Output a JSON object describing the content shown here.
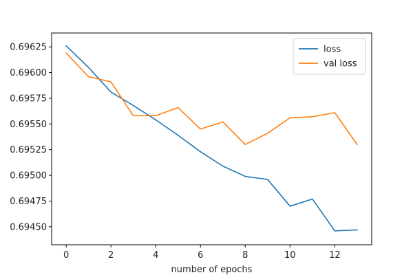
{
  "chart_data": {
    "type": "line",
    "title": "",
    "xlabel": "number of epochs",
    "ylabel": "",
    "x": [
      0,
      1,
      2,
      3,
      4,
      5,
      6,
      7,
      8,
      9,
      10,
      11,
      12,
      13
    ],
    "series": [
      {
        "name": "loss",
        "color": "#1f77b4",
        "values": [
          0.69626,
          0.69605,
          0.69581,
          0.69568,
          0.69554,
          0.69539,
          0.69523,
          0.69509,
          0.69499,
          0.69496,
          0.6947,
          0.69477,
          0.69446,
          0.69447
        ]
      },
      {
        "name": "val loss",
        "color": "#ff7f0e",
        "values": [
          0.69619,
          0.69596,
          0.69591,
          0.69558,
          0.69558,
          0.69566,
          0.69545,
          0.69552,
          0.6953,
          0.69541,
          0.69556,
          0.69557,
          0.69561,
          0.6953
        ]
      }
    ],
    "xticks": [
      "0",
      "2",
      "4",
      "6",
      "8",
      "10",
      "12"
    ],
    "yticks": [
      "0.69450",
      "0.69475",
      "0.69500",
      "0.69525",
      "0.69550",
      "0.69575",
      "0.69600",
      "0.69625"
    ],
    "xlim": [
      -0.65,
      13.65
    ],
    "ylim": [
      0.694325,
      0.696385
    ],
    "grid": false,
    "legend_position": "top-right"
  }
}
